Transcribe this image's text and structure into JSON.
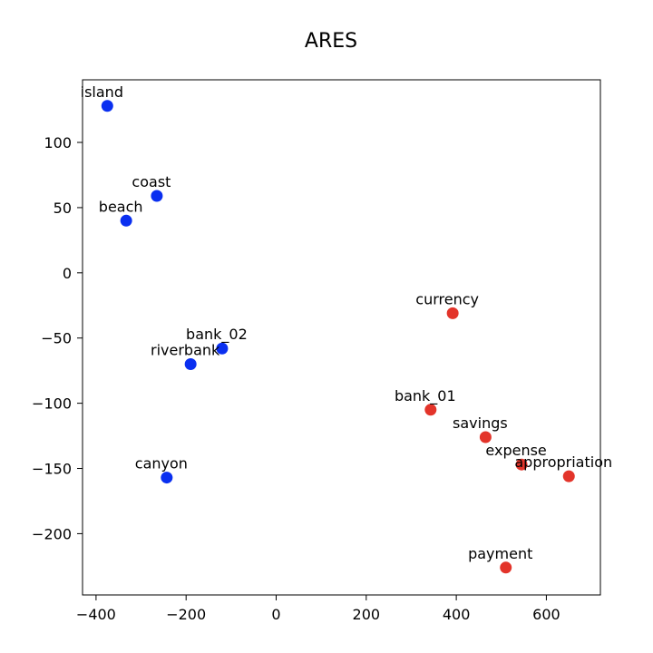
{
  "chart_data": {
    "type": "scatter",
    "title": "ARES",
    "xlabel": "",
    "ylabel": "",
    "xlim": [
      -430,
      720
    ],
    "ylim": [
      -247,
      148
    ],
    "xticks": [
      -400,
      -200,
      0,
      200,
      400,
      600
    ],
    "yticks": [
      100,
      50,
      0,
      -50,
      -100,
      -150,
      -200
    ],
    "xtick_labels": [
      "−400",
      "−200",
      "0",
      "200",
      "400",
      "600"
    ],
    "ytick_labels": [
      "100",
      "50",
      "0",
      "−50",
      "−100",
      "−150",
      "−200"
    ],
    "grid": false,
    "series": [
      {
        "color": "#0a2ff0",
        "points": [
          {
            "label": "island",
            "x": -375,
            "y": 128
          },
          {
            "label": "coast",
            "x": -265,
            "y": 59
          },
          {
            "label": "beach",
            "x": -333,
            "y": 40
          },
          {
            "label": "bank_02",
            "x": -120,
            "y": -58
          },
          {
            "label": "riverbank",
            "x": -190,
            "y": -70
          },
          {
            "label": "canyon",
            "x": -243,
            "y": -157
          }
        ]
      },
      {
        "color": "#e3342a",
        "points": [
          {
            "label": "currency",
            "x": 392,
            "y": -31
          },
          {
            "label": "bank_01",
            "x": 343,
            "y": -105
          },
          {
            "label": "savings",
            "x": 465,
            "y": -126
          },
          {
            "label": "expense",
            "x": 545,
            "y": -147
          },
          {
            "label": "appropriation",
            "x": 650,
            "y": -156
          },
          {
            "label": "payment",
            "x": 510,
            "y": -226
          }
        ]
      }
    ]
  }
}
